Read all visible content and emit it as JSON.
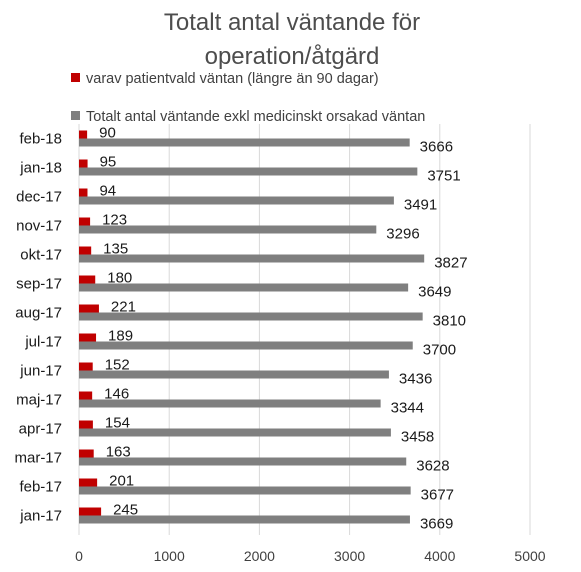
{
  "chart_data": {
    "type": "bar",
    "orientation": "horizontal",
    "title_lines": [
      "Totalt antal väntande för",
      "operation/åtgärd"
    ],
    "categories": [
      "feb-18",
      "jan-18",
      "dec-17",
      "nov-17",
      "okt-17",
      "sep-17",
      "aug-17",
      "jul-17",
      "jun-17",
      "maj-17",
      "apr-17",
      "mar-17",
      "feb-17",
      "jan-17"
    ],
    "series": [
      {
        "name": "varav patientvald väntan (längre än 90 dagar)",
        "color": "#c00000",
        "values": [
          90,
          95,
          94,
          123,
          135,
          180,
          221,
          189,
          152,
          146,
          154,
          163,
          201,
          245
        ]
      },
      {
        "name": "Totalt antal väntande exkl medicinskt orsakad väntan",
        "color": "#7f7f7f",
        "values": [
          3666,
          3751,
          3491,
          3296,
          3827,
          3649,
          3810,
          3700,
          3436,
          3344,
          3458,
          3628,
          3677,
          3669
        ]
      }
    ],
    "xlim": [
      0,
      5000
    ],
    "xticks": [
      0,
      1000,
      2000,
      3000,
      4000,
      5000
    ],
    "grid": true,
    "legend_position": "top"
  }
}
